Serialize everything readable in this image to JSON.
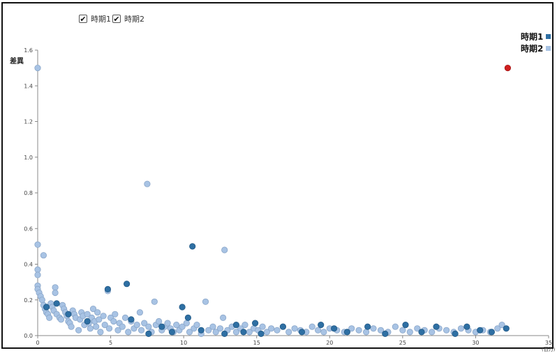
{
  "controls": [
    {
      "label": "時期1",
      "checked": true,
      "check": "✔"
    },
    {
      "label": "時期2",
      "checked": true,
      "check": "✔"
    }
  ],
  "legend": [
    {
      "label": "時期1",
      "color": "#2e6fa3"
    },
    {
      "label": "時期2",
      "color": "#a8c3e4"
    }
  ],
  "chart_data": {
    "type": "scatter",
    "ylabel": "差異",
    "xunit": "(百万)",
    "xlim": [
      0,
      35
    ],
    "ylim": [
      0,
      1.6
    ],
    "xticks": [
      0,
      5,
      10,
      15,
      20,
      25,
      30,
      35
    ],
    "yticks": [
      0.0,
      0.2,
      0.4,
      0.6,
      0.8,
      1.0,
      1.2,
      1.4,
      1.6
    ],
    "ytick_labels": [
      "0.0",
      "0.2",
      "0.4",
      "0.6",
      "0.8",
      "1.0",
      "1.2",
      "1.4",
      "1.6"
    ],
    "highlight": {
      "x": 32.2,
      "y": 1.5,
      "color": "#d01f1f"
    },
    "series": [
      {
        "name": "時期1",
        "color": "#2e6fa3",
        "points": [
          [
            0.6,
            0.16
          ],
          [
            1.3,
            0.18
          ],
          [
            2.1,
            0.12
          ],
          [
            3.4,
            0.08
          ],
          [
            4.8,
            0.26
          ],
          [
            6.1,
            0.29
          ],
          [
            6.4,
            0.09
          ],
          [
            7.6,
            0.01
          ],
          [
            8.5,
            0.05
          ],
          [
            9.2,
            0.02
          ],
          [
            9.9,
            0.16
          ],
          [
            10.3,
            0.1
          ],
          [
            10.6,
            0.5
          ],
          [
            11.2,
            0.03
          ],
          [
            12.8,
            0.01
          ],
          [
            13.6,
            0.06
          ],
          [
            14.1,
            0.02
          ],
          [
            14.9,
            0.07
          ],
          [
            15.3,
            0.01
          ],
          [
            16.8,
            0.05
          ],
          [
            18.1,
            0.02
          ],
          [
            19.4,
            0.06
          ],
          [
            20.3,
            0.04
          ],
          [
            21.2,
            0.02
          ],
          [
            22.6,
            0.05
          ],
          [
            23.8,
            0.01
          ],
          [
            25.2,
            0.06
          ],
          [
            26.3,
            0.02
          ],
          [
            27.3,
            0.05
          ],
          [
            28.6,
            0.01
          ],
          [
            29.4,
            0.05
          ],
          [
            30.3,
            0.03
          ],
          [
            31.1,
            0.02
          ],
          [
            32.1,
            0.04
          ]
        ]
      },
      {
        "name": "時期2",
        "color": "#a8c3e4",
        "points": [
          [
            0.0,
            1.5
          ],
          [
            0.0,
            0.51
          ],
          [
            0.4,
            0.45
          ],
          [
            0.0,
            0.37
          ],
          [
            0.0,
            0.34
          ],
          [
            0.0,
            0.28
          ],
          [
            0.0,
            0.26
          ],
          [
            0.1,
            0.24
          ],
          [
            0.2,
            0.22
          ],
          [
            0.3,
            0.2
          ],
          [
            0.4,
            0.17
          ],
          [
            0.5,
            0.15
          ],
          [
            0.6,
            0.13
          ],
          [
            0.7,
            0.12
          ],
          [
            0.8,
            0.1
          ],
          [
            0.9,
            0.18
          ],
          [
            1.0,
            0.16
          ],
          [
            1.1,
            0.14
          ],
          [
            1.2,
            0.27
          ],
          [
            1.2,
            0.24
          ],
          [
            1.3,
            0.12
          ],
          [
            1.5,
            0.1
          ],
          [
            1.6,
            0.09
          ],
          [
            1.7,
            0.17
          ],
          [
            1.8,
            0.15
          ],
          [
            1.9,
            0.13
          ],
          [
            2.0,
            0.11
          ],
          [
            2.1,
            0.08
          ],
          [
            2.2,
            0.07
          ],
          [
            2.3,
            0.05
          ],
          [
            2.4,
            0.14
          ],
          [
            2.5,
            0.12
          ],
          [
            2.6,
            0.1
          ],
          [
            2.8,
            0.03
          ],
          [
            2.9,
            0.09
          ],
          [
            3.0,
            0.13
          ],
          [
            3.1,
            0.11
          ],
          [
            3.2,
            0.06
          ],
          [
            3.4,
            0.12
          ],
          [
            3.5,
            0.07
          ],
          [
            3.6,
            0.04
          ],
          [
            3.7,
            0.1
          ],
          [
            3.8,
            0.15
          ],
          [
            3.9,
            0.08
          ],
          [
            4.0,
            0.05
          ],
          [
            4.1,
            0.13
          ],
          [
            4.2,
            0.09
          ],
          [
            4.3,
            0.02
          ],
          [
            4.5,
            0.11
          ],
          [
            4.6,
            0.06
          ],
          [
            4.8,
            0.25
          ],
          [
            4.9,
            0.04
          ],
          [
            5.0,
            0.1
          ],
          [
            5.2,
            0.08
          ],
          [
            5.3,
            0.12
          ],
          [
            5.5,
            0.03
          ],
          [
            5.6,
            0.07
          ],
          [
            5.8,
            0.05
          ],
          [
            6.0,
            0.1
          ],
          [
            6.2,
            0.02
          ],
          [
            6.4,
            0.08
          ],
          [
            6.6,
            0.04
          ],
          [
            6.8,
            0.06
          ],
          [
            7.0,
            0.13
          ],
          [
            7.1,
            0.03
          ],
          [
            7.3,
            0.07
          ],
          [
            7.5,
            0.85
          ],
          [
            7.6,
            0.05
          ],
          [
            7.8,
            0.02
          ],
          [
            8.0,
            0.19
          ],
          [
            8.1,
            0.06
          ],
          [
            8.3,
            0.08
          ],
          [
            8.5,
            0.03
          ],
          [
            8.7,
            0.05
          ],
          [
            8.9,
            0.07
          ],
          [
            9.1,
            0.04
          ],
          [
            9.3,
            0.02
          ],
          [
            9.5,
            0.06
          ],
          [
            9.7,
            0.03
          ],
          [
            9.9,
            0.05
          ],
          [
            10.2,
            0.07
          ],
          [
            10.4,
            0.02
          ],
          [
            10.7,
            0.04
          ],
          [
            10.9,
            0.06
          ],
          [
            11.2,
            0.01
          ],
          [
            11.5,
            0.19
          ],
          [
            11.7,
            0.03
          ],
          [
            12.0,
            0.05
          ],
          [
            12.2,
            0.02
          ],
          [
            12.5,
            0.04
          ],
          [
            12.7,
            0.1
          ],
          [
            12.8,
            0.48
          ],
          [
            13.0,
            0.03
          ],
          [
            13.3,
            0.05
          ],
          [
            13.6,
            0.02
          ],
          [
            13.9,
            0.04
          ],
          [
            14.2,
            0.06
          ],
          [
            14.5,
            0.02
          ],
          [
            14.8,
            0.04
          ],
          [
            15.1,
            0.03
          ],
          [
            15.4,
            0.05
          ],
          [
            15.7,
            0.02
          ],
          [
            16.0,
            0.04
          ],
          [
            16.4,
            0.03
          ],
          [
            16.8,
            0.05
          ],
          [
            17.2,
            0.02
          ],
          [
            17.6,
            0.04
          ],
          [
            18.0,
            0.03
          ],
          [
            18.4,
            0.02
          ],
          [
            18.8,
            0.05
          ],
          [
            19.2,
            0.03
          ],
          [
            19.6,
            0.02
          ],
          [
            20.0,
            0.04
          ],
          [
            20.5,
            0.03
          ],
          [
            21.0,
            0.02
          ],
          [
            21.5,
            0.04
          ],
          [
            22.0,
            0.03
          ],
          [
            22.5,
            0.02
          ],
          [
            23.0,
            0.04
          ],
          [
            23.5,
            0.03
          ],
          [
            24.0,
            0.02
          ],
          [
            24.5,
            0.05
          ],
          [
            25.0,
            0.03
          ],
          [
            25.5,
            0.02
          ],
          [
            26.0,
            0.04
          ],
          [
            26.5,
            0.03
          ],
          [
            27.0,
            0.02
          ],
          [
            27.5,
            0.04
          ],
          [
            28.0,
            0.03
          ],
          [
            28.5,
            0.02
          ],
          [
            29.0,
            0.04
          ],
          [
            29.5,
            0.03
          ],
          [
            30.0,
            0.02
          ],
          [
            30.5,
            0.03
          ],
          [
            31.0,
            0.02
          ],
          [
            31.5,
            0.04
          ],
          [
            31.8,
            0.06
          ]
        ]
      }
    ]
  }
}
